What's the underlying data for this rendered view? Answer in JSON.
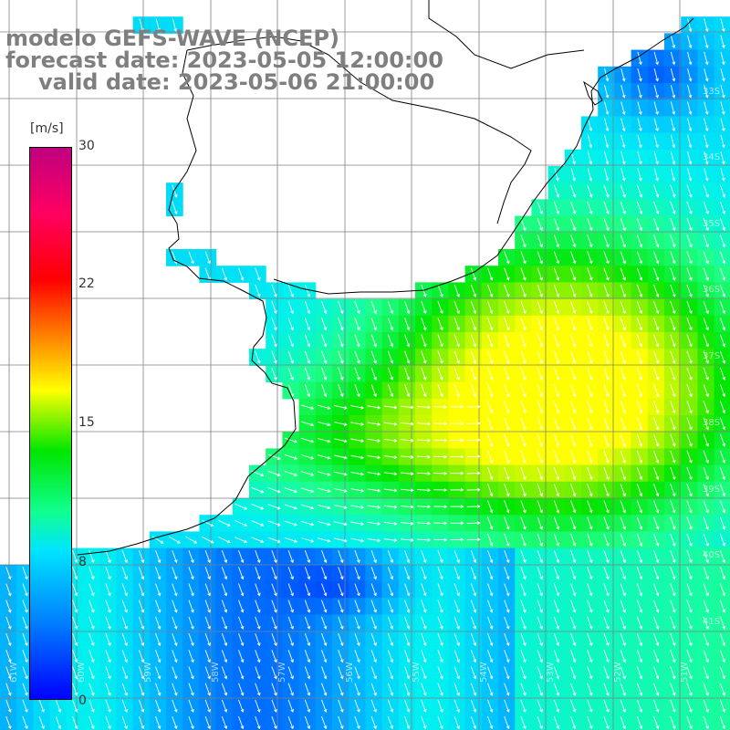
{
  "title": {
    "model": "modelo GEFS-WAVE (NCEP)",
    "forecast": "forecast date: 2023-05-05 12:00:00",
    "valid": "valid date: 2023-05-06 21:00:00"
  },
  "colorbar": {
    "unit": "[m/s]",
    "ticks": [
      "30",
      "22",
      "15",
      "8",
      "0"
    ],
    "colors": [
      "#0000ff",
      "#0080ff",
      "#00e5ff",
      "#10ff90",
      "#00e600",
      "#ffff00",
      "#ff8000",
      "#ff0000",
      "#c0007f"
    ]
  },
  "lat_labels": [
    "33S",
    "34S",
    "35S",
    "36S",
    "37S",
    "38S",
    "39S",
    "40S",
    "41S"
  ],
  "lon_labels": [
    "61W",
    "60W",
    "59W",
    "58W",
    "57W",
    "56W",
    "55W",
    "54W",
    "53W",
    "52W",
    "51W"
  ],
  "wind_direction": "south-southwest",
  "land_color": "#ffffff",
  "grid_color": "#808080",
  "coast_color": "#000000",
  "arrow_color": "#ffffff"
}
